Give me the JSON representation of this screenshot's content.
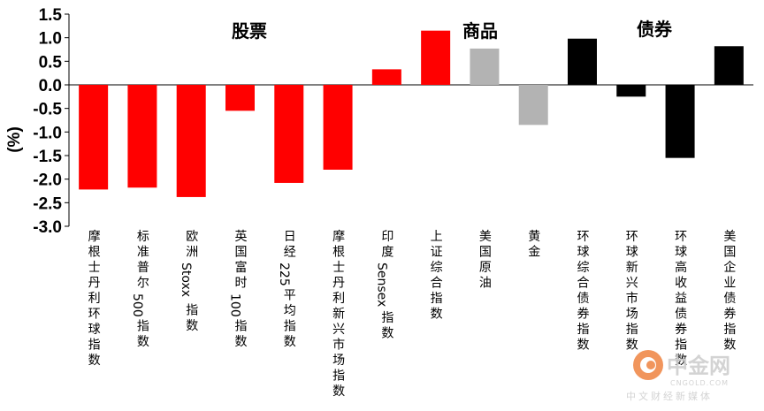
{
  "chart_data": {
    "type": "bar",
    "ylabel": "(%)",
    "ylim": [
      -3.0,
      1.5
    ],
    "yticks": [
      "1.5",
      "1.0",
      "0.5",
      "0.0",
      "-0.5",
      "-1.0",
      "-1.5",
      "-2.0",
      "-2.5",
      "-3.0"
    ],
    "categories": [
      "摩根士丹利环球指数",
      "标准普尔 500 指数",
      "欧洲 Stoxx 指数",
      "英国富时 100 指数",
      "日经 225 平均指数",
      "摩根士丹利新兴市场指数",
      "印度 Sensex 指数",
      "上证综合指数",
      "美国原油",
      "黄金",
      "环球综合债券指数",
      "环球新兴市场指数",
      "环球高收益债券指数",
      "美国企业债券指数"
    ],
    "category_lines": [
      [
        "摩",
        "根",
        "士",
        "丹",
        "利",
        "环",
        "球",
        "指",
        "数"
      ],
      [
        "标",
        "准",
        "普",
        "尔",
        " 500 ",
        "指",
        "数"
      ],
      [
        "欧",
        "洲",
        " Stoxx ",
        "指",
        "数"
      ],
      [
        "英",
        "国",
        "富",
        "时",
        " 100 ",
        "指",
        "数"
      ],
      [
        "日",
        "经",
        " 225 ",
        "平",
        "均",
        "指",
        "数"
      ],
      [
        "摩",
        "根",
        "士",
        "丹",
        "利",
        "新",
        "兴",
        "市",
        "场",
        "指",
        "数"
      ],
      [
        "印",
        "度",
        " Sensex ",
        "指",
        "数"
      ],
      [
        "上",
        "证",
        "综",
        "合",
        "指",
        "数"
      ],
      [
        "美",
        "国",
        "原",
        "油"
      ],
      [
        "黄",
        "金"
      ],
      [
        "环",
        "球",
        "综",
        "合",
        "债",
        "券",
        "指",
        "数"
      ],
      [
        "环",
        "球",
        "新",
        "兴",
        "市",
        "场",
        "指",
        "数"
      ],
      [
        "环",
        "球",
        "高",
        "收",
        "益",
        "债",
        "券",
        "指",
        "数"
      ],
      [
        "美",
        "国",
        "企",
        "业",
        "债",
        "券",
        "指",
        "数"
      ]
    ],
    "values": [
      -2.22,
      -2.18,
      -2.38,
      -0.55,
      -2.08,
      -1.8,
      0.33,
      1.15,
      0.77,
      -0.85,
      0.98,
      -0.25,
      -1.55,
      0.82
    ],
    "colors": [
      "#ff0000",
      "#ff0000",
      "#ff0000",
      "#ff0000",
      "#ff0000",
      "#ff0000",
      "#ff0000",
      "#ff0000",
      "#b3b3b3",
      "#b3b3b3",
      "#000000",
      "#000000",
      "#000000",
      "#000000"
    ],
    "groups": [
      {
        "label": "股票"
      },
      {
        "label": "商品"
      },
      {
        "label": "债券"
      }
    ],
    "grid": false
  },
  "watermark": {
    "brand": "中金网",
    "domain": "CNGOLD.COM",
    "tagline": "中文财经新媒体"
  }
}
